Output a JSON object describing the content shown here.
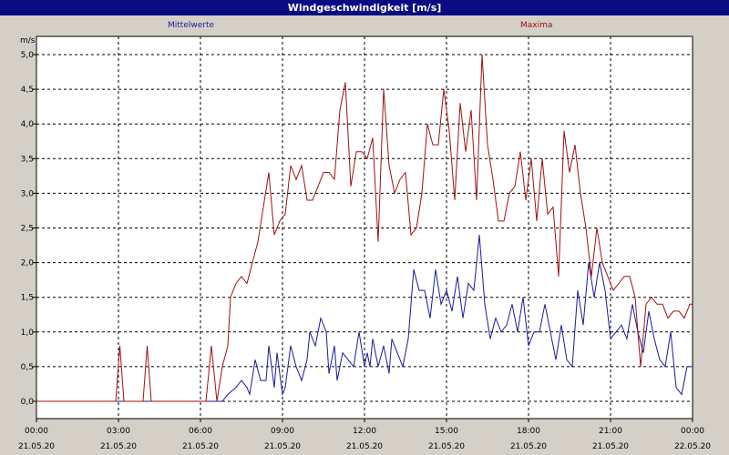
{
  "window": {
    "title": "Windgeschwindigkeit [m/s]"
  },
  "chart_data": {
    "type": "line",
    "title": "Windgeschwindigkeit [m/s]",
    "ylabel": "m/s",
    "ylim": [
      0,
      5.0
    ],
    "xlim": [
      0,
      24
    ],
    "grid": true,
    "legend_placement": "top",
    "y_ticks": [
      "0,0",
      "0,5",
      "1,0",
      "1,5",
      "2,0",
      "2,5",
      "3,0",
      "3,5",
      "4,0",
      "4,5",
      "5,0"
    ],
    "x_ticks": [
      {
        "time": "00:00",
        "date": "21.05.20"
      },
      {
        "time": "03:00",
        "date": "21.05.20"
      },
      {
        "time": "06:00",
        "date": "21.05.20"
      },
      {
        "time": "09:00",
        "date": "21.05.20"
      },
      {
        "time": "12:00",
        "date": "21.05.20"
      },
      {
        "time": "15:00",
        "date": "21.05.20"
      },
      {
        "time": "18:00",
        "date": "21.05.20"
      },
      {
        "time": "21:00",
        "date": "21.05.20"
      },
      {
        "time": "00:00",
        "date": "22.05.20"
      }
    ],
    "series": [
      {
        "name": "Mittelwerte",
        "color": "#1a1a9a",
        "points": [
          [
            0,
            0
          ],
          [
            3,
            0
          ],
          [
            6.8,
            0
          ],
          [
            7,
            0.1
          ],
          [
            7.3,
            0.2
          ],
          [
            7.5,
            0.3
          ],
          [
            7.7,
            0.2
          ],
          [
            7.8,
            0.1
          ],
          [
            8,
            0.6
          ],
          [
            8.2,
            0.3
          ],
          [
            8.4,
            0.3
          ],
          [
            8.5,
            0.8
          ],
          [
            8.7,
            0.2
          ],
          [
            8.8,
            0.7
          ],
          [
            9,
            0.1
          ],
          [
            9.1,
            0.2
          ],
          [
            9.3,
            0.8
          ],
          [
            9.5,
            0.5
          ],
          [
            9.7,
            0.3
          ],
          [
            9.9,
            0.6
          ],
          [
            10,
            1.0
          ],
          [
            10.2,
            0.8
          ],
          [
            10.4,
            1.2
          ],
          [
            10.6,
            1.0
          ],
          [
            10.7,
            0.4
          ],
          [
            10.9,
            0.8
          ],
          [
            11.0,
            0.3
          ],
          [
            11.2,
            0.7
          ],
          [
            11.4,
            0.6
          ],
          [
            11.6,
            0.5
          ],
          [
            11.8,
            1.0
          ],
          [
            12.0,
            0.5
          ],
          [
            12.1,
            0.7
          ],
          [
            12.2,
            0.5
          ],
          [
            12.3,
            0.9
          ],
          [
            12.5,
            0.5
          ],
          [
            12.7,
            0.8
          ],
          [
            12.9,
            0.4
          ],
          [
            13.0,
            0.9
          ],
          [
            13.2,
            0.7
          ],
          [
            13.4,
            0.5
          ],
          [
            13.6,
            0.9
          ],
          [
            13.8,
            1.9
          ],
          [
            14.0,
            1.6
          ],
          [
            14.2,
            1.6
          ],
          [
            14.4,
            1.2
          ],
          [
            14.6,
            1.9
          ],
          [
            14.8,
            1.4
          ],
          [
            15.0,
            1.6
          ],
          [
            15.2,
            1.3
          ],
          [
            15.4,
            1.8
          ],
          [
            15.6,
            1.2
          ],
          [
            15.8,
            1.7
          ],
          [
            16.0,
            1.6
          ],
          [
            16.2,
            2.4
          ],
          [
            16.4,
            1.4
          ],
          [
            16.6,
            0.9
          ],
          [
            16.8,
            1.2
          ],
          [
            17.0,
            1.0
          ],
          [
            17.2,
            1.1
          ],
          [
            17.4,
            1.4
          ],
          [
            17.6,
            1.0
          ],
          [
            17.8,
            1.5
          ],
          [
            18.0,
            0.8
          ],
          [
            18.2,
            1.0
          ],
          [
            18.4,
            1.0
          ],
          [
            18.6,
            1.4
          ],
          [
            18.8,
            1.0
          ],
          [
            19.0,
            0.6
          ],
          [
            19.2,
            1.1
          ],
          [
            19.4,
            0.6
          ],
          [
            19.6,
            0.5
          ],
          [
            19.8,
            1.6
          ],
          [
            20.0,
            1.1
          ],
          [
            20.2,
            2.0
          ],
          [
            20.4,
            1.5
          ],
          [
            20.6,
            2.0
          ],
          [
            20.8,
            1.6
          ],
          [
            21.0,
            0.9
          ],
          [
            21.2,
            1.0
          ],
          [
            21.4,
            1.1
          ],
          [
            21.6,
            0.9
          ],
          [
            21.8,
            1.4
          ],
          [
            22.0,
            1.0
          ],
          [
            22.2,
            0.7
          ],
          [
            22.4,
            1.3
          ],
          [
            22.6,
            0.9
          ],
          [
            22.8,
            0.6
          ],
          [
            23.0,
            0.5
          ],
          [
            23.2,
            1.0
          ],
          [
            23.4,
            0.2
          ],
          [
            23.6,
            0.1
          ],
          [
            23.8,
            0.5
          ],
          [
            24,
            0.5
          ]
        ]
      },
      {
        "name": "Maxima",
        "color": "#a01010",
        "points": [
          [
            0,
            0
          ],
          [
            2.9,
            0
          ],
          [
            3.05,
            0.8
          ],
          [
            3.2,
            0
          ],
          [
            3.9,
            0
          ],
          [
            4.05,
            0.8
          ],
          [
            4.2,
            0
          ],
          [
            6.2,
            0
          ],
          [
            6.4,
            0.8
          ],
          [
            6.6,
            0
          ],
          [
            6.8,
            0.5
          ],
          [
            7.0,
            0.8
          ],
          [
            7.1,
            1.5
          ],
          [
            7.3,
            1.7
          ],
          [
            7.5,
            1.8
          ],
          [
            7.7,
            1.7
          ],
          [
            7.9,
            2.0
          ],
          [
            8.1,
            2.3
          ],
          [
            8.3,
            2.8
          ],
          [
            8.5,
            3.3
          ],
          [
            8.7,
            2.4
          ],
          [
            8.9,
            2.6
          ],
          [
            9.1,
            2.7
          ],
          [
            9.3,
            3.4
          ],
          [
            9.5,
            3.2
          ],
          [
            9.7,
            3.4
          ],
          [
            9.9,
            2.9
          ],
          [
            10.1,
            2.9
          ],
          [
            10.3,
            3.1
          ],
          [
            10.5,
            3.3
          ],
          [
            10.7,
            3.3
          ],
          [
            10.9,
            3.2
          ],
          [
            11.1,
            4.2
          ],
          [
            11.3,
            4.6
          ],
          [
            11.5,
            3.1
          ],
          [
            11.7,
            3.6
          ],
          [
            11.9,
            3.6
          ],
          [
            12.1,
            3.5
          ],
          [
            12.3,
            3.8
          ],
          [
            12.5,
            2.3
          ],
          [
            12.7,
            4.5
          ],
          [
            12.9,
            3.4
          ],
          [
            13.1,
            3.0
          ],
          [
            13.3,
            3.2
          ],
          [
            13.5,
            3.3
          ],
          [
            13.7,
            2.4
          ],
          [
            13.9,
            2.5
          ],
          [
            14.1,
            3.0
          ],
          [
            14.3,
            4.0
          ],
          [
            14.5,
            3.7
          ],
          [
            14.7,
            3.7
          ],
          [
            14.9,
            4.5
          ],
          [
            15.1,
            3.9
          ],
          [
            15.3,
            2.9
          ],
          [
            15.5,
            4.3
          ],
          [
            15.7,
            3.6
          ],
          [
            15.9,
            4.2
          ],
          [
            16.1,
            2.9
          ],
          [
            16.3,
            5.0
          ],
          [
            16.5,
            3.7
          ],
          [
            16.7,
            3.2
          ],
          [
            16.9,
            2.6
          ],
          [
            17.1,
            2.6
          ],
          [
            17.3,
            3.0
          ],
          [
            17.5,
            3.1
          ],
          [
            17.7,
            3.6
          ],
          [
            17.9,
            2.9
          ],
          [
            18.1,
            3.5
          ],
          [
            18.3,
            2.6
          ],
          [
            18.5,
            3.5
          ],
          [
            18.7,
            2.7
          ],
          [
            18.9,
            2.8
          ],
          [
            19.1,
            1.8
          ],
          [
            19.3,
            3.9
          ],
          [
            19.5,
            3.3
          ],
          [
            19.7,
            3.7
          ],
          [
            19.9,
            3.0
          ],
          [
            20.1,
            2.5
          ],
          [
            20.3,
            1.8
          ],
          [
            20.5,
            2.5
          ],
          [
            20.7,
            2.0
          ],
          [
            20.9,
            1.8
          ],
          [
            21.1,
            1.6
          ],
          [
            21.3,
            1.7
          ],
          [
            21.5,
            1.8
          ],
          [
            21.7,
            1.8
          ],
          [
            21.9,
            1.5
          ],
          [
            22.1,
            0.5
          ],
          [
            22.3,
            1.4
          ],
          [
            22.5,
            1.5
          ],
          [
            22.7,
            1.4
          ],
          [
            22.9,
            1.4
          ],
          [
            23.1,
            1.2
          ],
          [
            23.3,
            1.3
          ],
          [
            23.5,
            1.3
          ],
          [
            23.7,
            1.2
          ],
          [
            23.9,
            1.4
          ],
          [
            24,
            1.4
          ]
        ]
      }
    ]
  }
}
